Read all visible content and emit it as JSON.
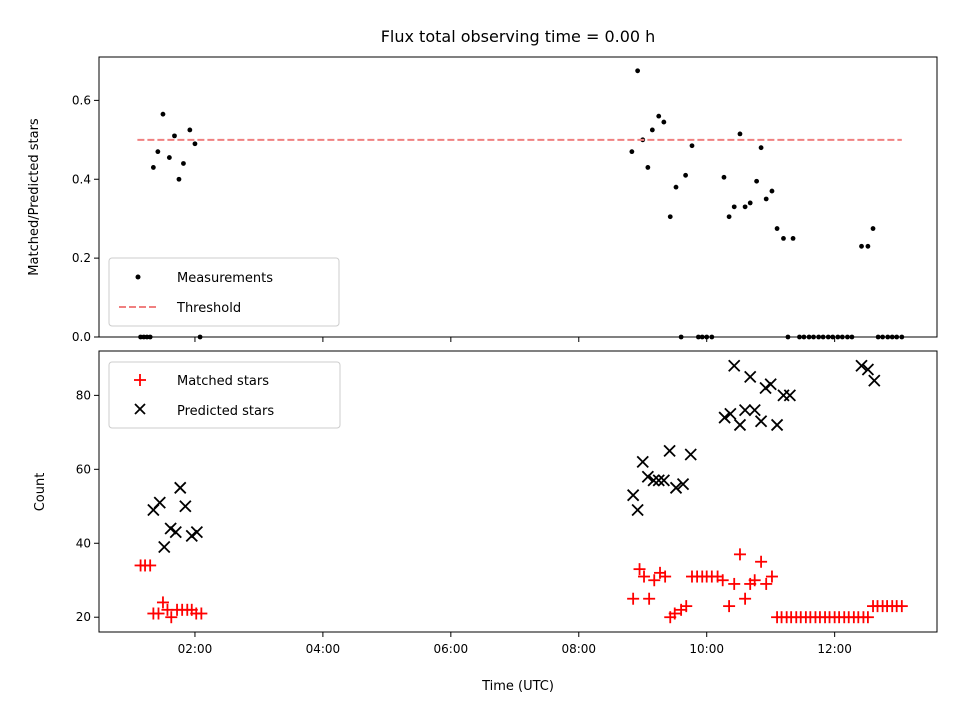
{
  "chart_data": {
    "type": "scatter",
    "title": "Flux total observing time = 0.00 h",
    "xlabel": "Time (UTC)",
    "xlim": [
      0.5,
      13.6
    ],
    "xticks": [
      2,
      4,
      6,
      8,
      10,
      12
    ],
    "xtick_labels": [
      "02:00",
      "04:00",
      "06:00",
      "08:00",
      "10:00",
      "12:00"
    ],
    "panels": [
      {
        "ylabel": "Matched/Predicted stars",
        "ylim": [
          0,
          0.71
        ],
        "yticks": [
          0.0,
          0.2,
          0.4,
          0.6
        ],
        "ytick_labels": [
          "0.0",
          "0.2",
          "0.4",
          "0.6"
        ],
        "legend_position": "lower left",
        "series": [
          {
            "name": "Measurements",
            "marker": "dot",
            "color": "#000000",
            "points": [
              [
                1.15,
                0
              ],
              [
                1.2,
                0
              ],
              [
                1.25,
                0
              ],
              [
                1.3,
                0
              ],
              [
                1.35,
                0.43
              ],
              [
                1.42,
                0.47
              ],
              [
                1.5,
                0.565
              ],
              [
                1.6,
                0.455
              ],
              [
                1.68,
                0.51
              ],
              [
                1.75,
                0.4
              ],
              [
                1.82,
                0.44
              ],
              [
                1.92,
                0.525
              ],
              [
                2.0,
                0.49
              ],
              [
                2.08,
                0
              ],
              [
                8.83,
                0.47
              ],
              [
                8.92,
                0.675
              ],
              [
                9.0,
                0.5
              ],
              [
                9.08,
                0.43
              ],
              [
                9.15,
                0.525
              ],
              [
                9.25,
                0.56
              ],
              [
                9.33,
                0.545
              ],
              [
                9.43,
                0.305
              ],
              [
                9.52,
                0.38
              ],
              [
                9.6,
                0
              ],
              [
                9.67,
                0.41
              ],
              [
                9.77,
                0.485
              ],
              [
                9.87,
                0
              ],
              [
                9.93,
                0
              ],
              [
                10.0,
                0
              ],
              [
                10.08,
                0
              ],
              [
                10.27,
                0.405
              ],
              [
                10.35,
                0.305
              ],
              [
                10.43,
                0.33
              ],
              [
                10.52,
                0.515
              ],
              [
                10.6,
                0.33
              ],
              [
                10.68,
                0.34
              ],
              [
                10.78,
                0.395
              ],
              [
                10.85,
                0.48
              ],
              [
                10.93,
                0.35
              ],
              [
                11.02,
                0.37
              ],
              [
                11.1,
                0.275
              ],
              [
                11.2,
                0.25
              ],
              [
                11.27,
                0
              ],
              [
                11.35,
                0.25
              ],
              [
                11.45,
                0
              ],
              [
                11.52,
                0
              ],
              [
                11.6,
                0
              ],
              [
                11.67,
                0
              ],
              [
                11.75,
                0
              ],
              [
                11.82,
                0
              ],
              [
                11.9,
                0
              ],
              [
                11.97,
                0
              ],
              [
                12.05,
                0
              ],
              [
                12.12,
                0
              ],
              [
                12.2,
                0
              ],
              [
                12.27,
                0
              ],
              [
                12.42,
                0.23
              ],
              [
                12.52,
                0.23
              ],
              [
                12.6,
                0.275
              ],
              [
                12.68,
                0
              ],
              [
                12.75,
                0
              ],
              [
                12.83,
                0
              ],
              [
                12.9,
                0
              ],
              [
                12.97,
                0
              ],
              [
                13.05,
                0
              ]
            ]
          },
          {
            "name": "Threshold",
            "style": "dashed-line",
            "color": "#f08080",
            "points": [
              [
                1.1,
                0.5
              ],
              [
                13.05,
                0.5
              ]
            ]
          }
        ]
      },
      {
        "ylabel": "Count",
        "ylim": [
          16,
          92
        ],
        "yticks": [
          20,
          40,
          60,
          80
        ],
        "ytick_labels": [
          "20",
          "40",
          "60",
          "80"
        ],
        "legend_position": "upper left",
        "series": [
          {
            "name": "Matched stars",
            "marker": "plus",
            "color": "#ff0000",
            "points": [
              [
                1.15,
                34
              ],
              [
                1.22,
                34
              ],
              [
                1.3,
                34
              ],
              [
                1.35,
                21
              ],
              [
                1.43,
                21
              ],
              [
                1.5,
                24
              ],
              [
                1.57,
                22
              ],
              [
                1.63,
                20
              ],
              [
                1.72,
                22
              ],
              [
                1.8,
                22
              ],
              [
                1.88,
                22
              ],
              [
                1.95,
                22
              ],
              [
                2.02,
                21
              ],
              [
                2.1,
                21
              ],
              [
                8.85,
                25
              ],
              [
                8.95,
                33
              ],
              [
                9.02,
                31
              ],
              [
                9.1,
                25
              ],
              [
                9.18,
                30
              ],
              [
                9.27,
                32
              ],
              [
                9.35,
                31
              ],
              [
                9.43,
                20
              ],
              [
                9.5,
                21
              ],
              [
                9.6,
                22
              ],
              [
                9.68,
                23
              ],
              [
                9.77,
                31
              ],
              [
                9.85,
                31
              ],
              [
                9.93,
                31
              ],
              [
                10.0,
                31
              ],
              [
                10.08,
                31
              ],
              [
                10.17,
                31
              ],
              [
                10.25,
                30
              ],
              [
                10.35,
                23
              ],
              [
                10.43,
                29
              ],
              [
                10.52,
                37
              ],
              [
                10.6,
                25
              ],
              [
                10.68,
                29
              ],
              [
                10.75,
                30
              ],
              [
                10.85,
                35
              ],
              [
                10.93,
                29
              ],
              [
                11.02,
                31
              ],
              [
                11.1,
                20
              ],
              [
                11.17,
                20
              ],
              [
                11.25,
                20
              ],
              [
                11.32,
                20
              ],
              [
                11.4,
                20
              ],
              [
                11.47,
                20
              ],
              [
                11.55,
                20
              ],
              [
                11.62,
                20
              ],
              [
                11.7,
                20
              ],
              [
                11.77,
                20
              ],
              [
                11.85,
                20
              ],
              [
                11.92,
                20
              ],
              [
                12.0,
                20
              ],
              [
                12.07,
                20
              ],
              [
                12.15,
                20
              ],
              [
                12.22,
                20
              ],
              [
                12.3,
                20
              ],
              [
                12.37,
                20
              ],
              [
                12.45,
                20
              ],
              [
                12.52,
                20
              ],
              [
                12.6,
                23
              ],
              [
                12.67,
                23
              ],
              [
                12.75,
                23
              ],
              [
                12.82,
                23
              ],
              [
                12.9,
                23
              ],
              [
                12.97,
                23
              ],
              [
                13.05,
                23
              ]
            ]
          },
          {
            "name": "Predicted stars",
            "marker": "x",
            "color": "#000000",
            "points": [
              [
                1.35,
                49
              ],
              [
                1.45,
                51
              ],
              [
                1.52,
                39
              ],
              [
                1.62,
                44
              ],
              [
                1.7,
                43
              ],
              [
                1.77,
                55
              ],
              [
                1.85,
                50
              ],
              [
                1.95,
                42
              ],
              [
                2.03,
                43
              ],
              [
                8.85,
                53
              ],
              [
                8.92,
                49
              ],
              [
                9.0,
                62
              ],
              [
                9.08,
                58
              ],
              [
                9.17,
                57
              ],
              [
                9.25,
                57
              ],
              [
                9.33,
                57
              ],
              [
                9.42,
                65
              ],
              [
                9.52,
                55
              ],
              [
                9.63,
                56
              ],
              [
                9.75,
                64
              ],
              [
                10.28,
                74
              ],
              [
                10.37,
                75
              ],
              [
                10.43,
                88
              ],
              [
                10.52,
                72
              ],
              [
                10.6,
                76
              ],
              [
                10.68,
                85
              ],
              [
                10.75,
                76
              ],
              [
                10.85,
                73
              ],
              [
                10.92,
                82
              ],
              [
                11.0,
                83
              ],
              [
                11.1,
                72
              ],
              [
                11.2,
                80
              ],
              [
                11.3,
                80
              ],
              [
                12.42,
                88
              ],
              [
                12.52,
                87
              ],
              [
                12.62,
                84
              ]
            ]
          }
        ]
      }
    ]
  }
}
